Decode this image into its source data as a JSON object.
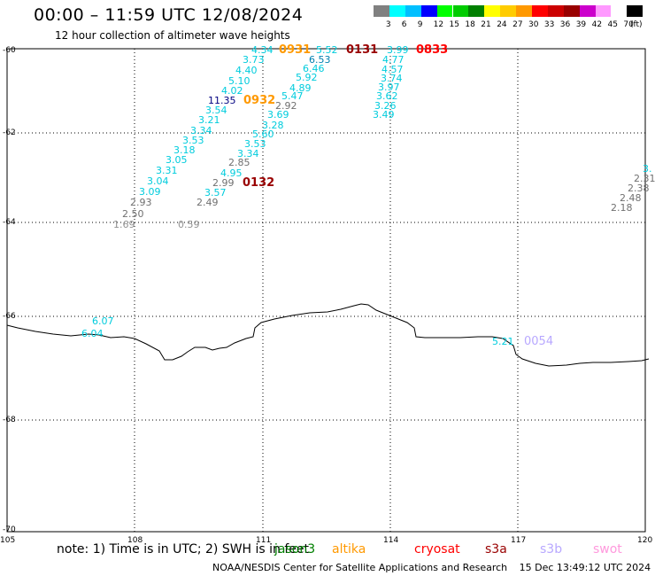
{
  "header": {
    "title": "00:00 – 11:59 UTC 12/08/2024",
    "subtitle": "12 hour collection of altimeter wave heights"
  },
  "colorbar": {
    "unit": "(ft)",
    "ticks": [
      "3",
      "6",
      "9",
      "12",
      "15",
      "18",
      "21",
      "24",
      "27",
      "30",
      "33",
      "36",
      "39",
      "42",
      "45",
      "70"
    ],
    "colors": [
      "#808080",
      "#00ffff",
      "#00bfff",
      "#0000ff",
      "#00ff00",
      "#00cc00",
      "#008000",
      "#ffff00",
      "#ffcc00",
      "#ff9900",
      "#ff0000",
      "#cc0000",
      "#990000",
      "#cc00cc",
      "#ff99ff",
      "#ffffff",
      "#000000"
    ]
  },
  "axes": {
    "lat_labels": [
      "-60",
      "-62",
      "-64",
      "-66",
      "-68",
      "-70"
    ],
    "lon_labels": [
      "105",
      "108",
      "111",
      "114",
      "117",
      "120"
    ]
  },
  "passes": [
    {
      "label": "0931",
      "color": "#ff9900"
    },
    {
      "label": "0131",
      "color": "#990000"
    },
    {
      "label": "0833",
      "color": "#ff0000"
    },
    {
      "label": "0932",
      "color": "#ff9900"
    },
    {
      "label": "0132",
      "color": "#990000"
    },
    {
      "label": "0054",
      "color": "#b8a8ff"
    }
  ],
  "wave_heights": [
    {
      "v": "4.34",
      "c": "#00ccdd"
    },
    {
      "v": "5.52",
      "c": "#00ccdd"
    },
    {
      "v": "3.99",
      "c": "#00ccdd"
    },
    {
      "v": "3.73",
      "c": "#00ccdd"
    },
    {
      "v": "6.53",
      "c": "#0080b0"
    },
    {
      "v": "4.77",
      "c": "#00ccdd"
    },
    {
      "v": "4.40",
      "c": "#00ccdd"
    },
    {
      "v": "6.46",
      "c": "#00ccdd"
    },
    {
      "v": "4.57",
      "c": "#00ccdd"
    },
    {
      "v": "5.10",
      "c": "#00ccdd"
    },
    {
      "v": "5.92",
      "c": "#00ccdd"
    },
    {
      "v": "3.74",
      "c": "#00ccdd"
    },
    {
      "v": "4.02",
      "c": "#00ccdd"
    },
    {
      "v": "4.89",
      "c": "#00ccdd"
    },
    {
      "v": "3.97",
      "c": "#00ccdd"
    },
    {
      "v": "11.35",
      "c": "#000080"
    },
    {
      "v": "5.47",
      "c": "#00ccdd"
    },
    {
      "v": "3.62",
      "c": "#00ccdd"
    },
    {
      "v": "3.54",
      "c": "#00ccdd"
    },
    {
      "v": "2.92",
      "c": "#707070"
    },
    {
      "v": "3.26",
      "c": "#00ccdd"
    },
    {
      "v": "3.69",
      "c": "#00ccdd"
    },
    {
      "v": "3.49",
      "c": "#00ccdd"
    },
    {
      "v": "3.21",
      "c": "#00ccdd"
    },
    {
      "v": "3.28",
      "c": "#00ccdd"
    },
    {
      "v": "3.34",
      "c": "#00ccdd"
    },
    {
      "v": "5.60",
      "c": "#00ccdd"
    },
    {
      "v": "3.53",
      "c": "#00ccdd"
    },
    {
      "v": "3.53",
      "c": "#00ccdd"
    },
    {
      "v": "3.18",
      "c": "#00ccdd"
    },
    {
      "v": "3.34",
      "c": "#00ccdd"
    },
    {
      "v": "3.05",
      "c": "#00ccdd"
    },
    {
      "v": "2.85",
      "c": "#707070"
    },
    {
      "v": "3.31",
      "c": "#00ccdd"
    },
    {
      "v": "4.95",
      "c": "#00ccdd"
    },
    {
      "v": "3.04",
      "c": "#00ccdd"
    },
    {
      "v": "2.99",
      "c": "#707070"
    },
    {
      "v": "3.09",
      "c": "#00ccdd"
    },
    {
      "v": "3.57",
      "c": "#00ccdd"
    },
    {
      "v": "2.93",
      "c": "#707070"
    },
    {
      "v": "2.49",
      "c": "#707070"
    },
    {
      "v": "2.50",
      "c": "#707070"
    },
    {
      "v": "1.69",
      "c": "#909090"
    },
    {
      "v": "0.59",
      "c": "#909090"
    },
    {
      "v": "2.31",
      "c": "#707070"
    },
    {
      "v": "2.38",
      "c": "#707070"
    },
    {
      "v": "2.48",
      "c": "#707070"
    },
    {
      "v": "2.18",
      "c": "#707070"
    },
    {
      "v": "3.",
      "c": "#00ccdd"
    },
    {
      "v": "6.07",
      "c": "#00ccdd"
    },
    {
      "v": "6.04",
      "c": "#00ccdd"
    },
    {
      "v": "5.21",
      "c": "#00ccdd"
    }
  ],
  "footer": {
    "note": "note: 1) Time is in UTC; 2) SWH is in feet",
    "satellites": [
      {
        "name": "jason3",
        "color": "#008000"
      },
      {
        "name": "altika",
        "color": "#ff9900"
      },
      {
        "name": "cryosat",
        "color": "#ff0000"
      },
      {
        "name": "s3a",
        "color": "#990000"
      },
      {
        "name": "s3b",
        "color": "#b8a8ff"
      },
      {
        "name": "swot",
        "color": "#ff99dd"
      }
    ],
    "credit": "NOAA/NESDIS Center for Satellite Applications and Research",
    "timestamp": "15 Dec 13:49:12 UTC 2024"
  }
}
